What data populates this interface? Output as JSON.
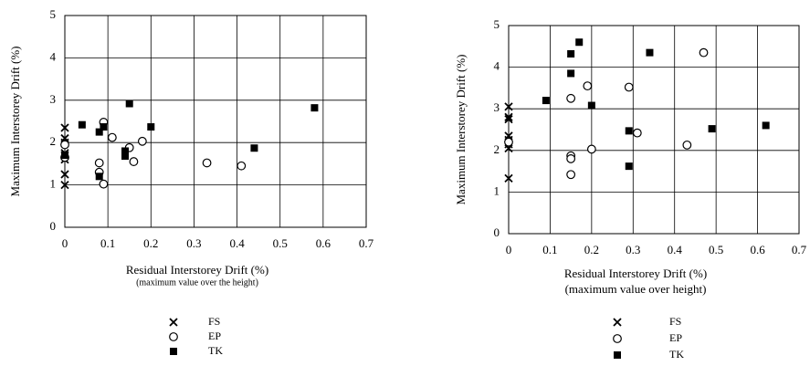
{
  "chart_data": [
    {
      "type": "scatter",
      "x_label": "Residual Interstorey Drift (%)",
      "x_sublabel": "(maximum value over the height)",
      "y_label": "Maximum Interstorey Drift (%)",
      "xlim": [
        0,
        0.7
      ],
      "xticks": [
        0,
        0.1,
        0.2,
        0.3,
        0.4,
        0.5,
        0.6,
        0.7
      ],
      "ylim": [
        0,
        5
      ],
      "yticks": [
        0,
        1,
        2,
        3,
        4,
        5
      ],
      "grid": true,
      "series": [
        {
          "name": "FS",
          "marker": "x",
          "color": "#000000",
          "x": [
            0,
            0,
            0,
            0,
            0,
            0,
            0,
            0
          ],
          "values": [
            1.0,
            1.25,
            1.6,
            1.7,
            1.75,
            2.0,
            2.1,
            2.35
          ]
        },
        {
          "name": "EP",
          "marker": "circle",
          "color": "#000000",
          "x": [
            0,
            0,
            0.08,
            0.08,
            0.09,
            0.09,
            0.11,
            0.15,
            0.16,
            0.18,
            0.33,
            0.41
          ],
          "values": [
            1.95,
            1.65,
            1.52,
            1.3,
            1.02,
            2.48,
            2.12,
            1.88,
            1.55,
            2.03,
            1.52,
            1.45
          ]
        },
        {
          "name": "TK",
          "marker": "square",
          "color": "#000000",
          "x": [
            0,
            0.04,
            0.08,
            0.08,
            0.09,
            0.14,
            0.14,
            0.15,
            0.2,
            0.44,
            0.58
          ],
          "values": [
            1.7,
            2.42,
            2.25,
            1.2,
            2.37,
            1.8,
            1.68,
            2.92,
            2.37,
            1.87,
            2.82
          ]
        }
      ]
    },
    {
      "type": "scatter",
      "x_label": "Residual Interstorey Drift (%)",
      "x_sublabel": "(maximum value over height)",
      "y_label": "Maximum Interstorey Drift (%)",
      "xlim": [
        0,
        0.7
      ],
      "xticks": [
        0,
        0.1,
        0.2,
        0.3,
        0.4,
        0.5,
        0.6,
        0.7
      ],
      "ylim": [
        0,
        5
      ],
      "yticks": [
        0,
        1,
        2,
        3,
        4,
        5
      ],
      "grid": true,
      "series": [
        {
          "name": "FS",
          "marker": "x",
          "color": "#000000",
          "x": [
            0,
            0,
            0,
            0,
            0,
            0,
            0,
            0
          ],
          "values": [
            1.33,
            2.05,
            2.15,
            2.25,
            2.35,
            2.75,
            2.8,
            3.05
          ]
        },
        {
          "name": "EP",
          "marker": "circle",
          "color": "#000000",
          "x": [
            0,
            0.15,
            0.15,
            0.15,
            0.15,
            0.19,
            0.2,
            0.29,
            0.31,
            0.43,
            0.47
          ],
          "values": [
            2.2,
            3.25,
            1.87,
            1.8,
            1.42,
            3.55,
            2.03,
            3.52,
            2.42,
            2.13,
            4.35
          ]
        },
        {
          "name": "TK",
          "marker": "square",
          "color": "#000000",
          "x": [
            0.09,
            0.15,
            0.17,
            0.15,
            0.2,
            0.29,
            0.29,
            0.34,
            0.49,
            0.62
          ],
          "values": [
            3.2,
            4.32,
            4.6,
            3.85,
            3.08,
            2.47,
            1.62,
            4.35,
            2.52,
            2.6
          ]
        }
      ]
    }
  ]
}
